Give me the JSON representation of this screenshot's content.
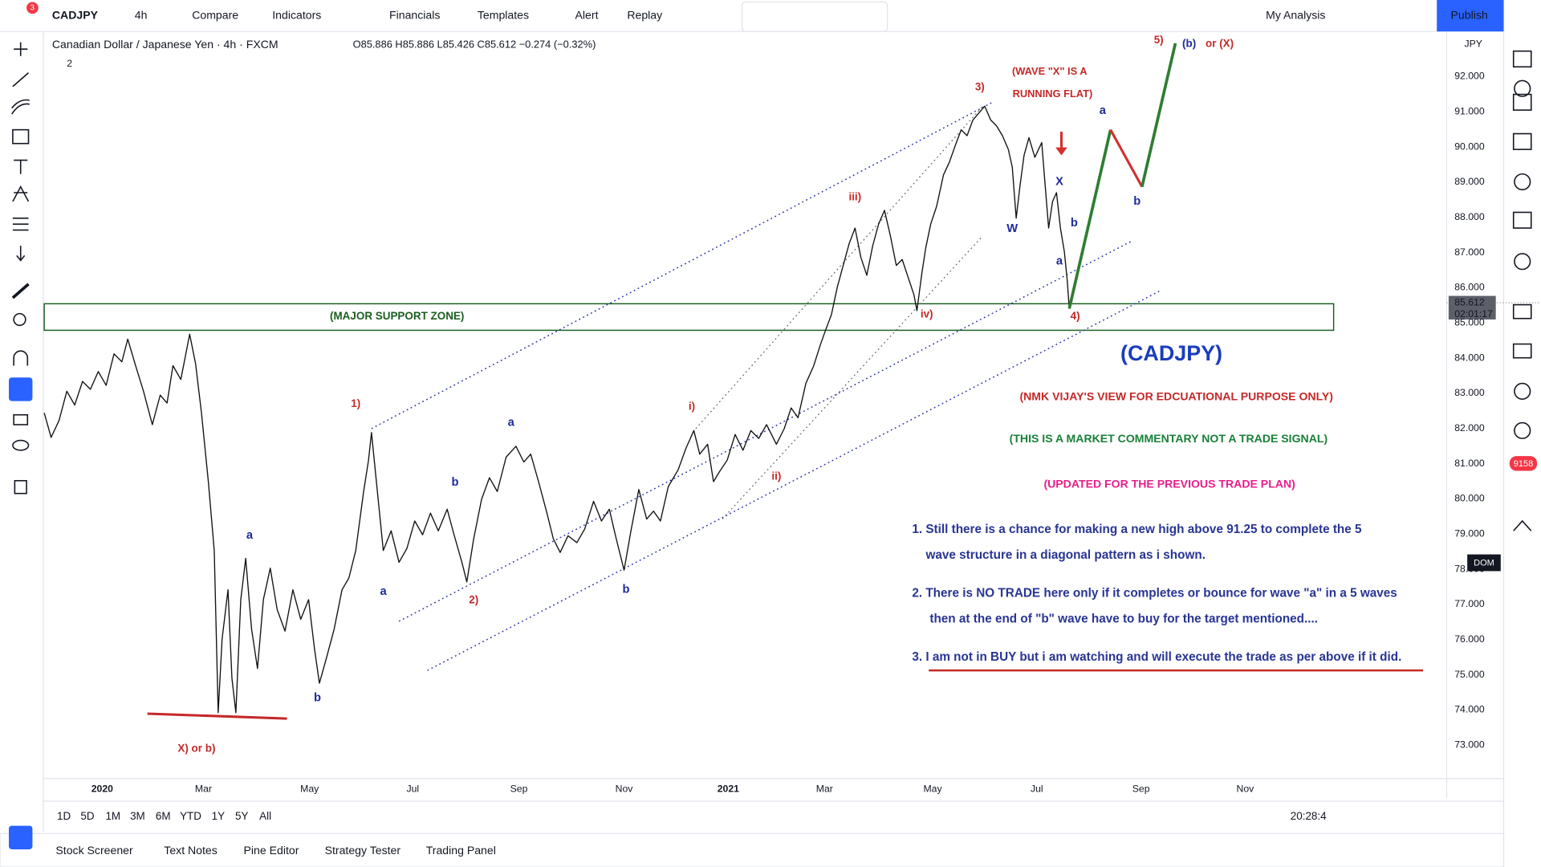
{
  "toolbar": {
    "symbol": "CADJPY",
    "interval": "4h",
    "items": [
      "Compare",
      "Indicators",
      "Financials",
      "Templates",
      "Alert",
      "Replay"
    ],
    "layout": "My Analysis",
    "publish": "Publish",
    "notifications": "3"
  },
  "legend": {
    "title": "Canadian Dollar / Japanese Yen · 4h · FXCM",
    "ohlc": "O85.886 H85.886 L85.426 C85.612 −0.274 (−0.32%)",
    "collapsed": "2"
  },
  "price_axis": {
    "currency": "JPY",
    "labels": [
      "92.000",
      "91.000",
      "90.000",
      "89.000",
      "88.000",
      "87.000",
      "86.000",
      "85.000",
      "84.000",
      "83.000",
      "82.000",
      "81.000",
      "80.000",
      "79.000",
      "78.000",
      "77.000",
      "76.000",
      "75.000",
      "74.000",
      "73.000"
    ],
    "last_price": "85.612",
    "countdown": "02:01:17"
  },
  "time_axis": {
    "labels": [
      "2020",
      "Mar",
      "May",
      "Jul",
      "Sep",
      "Nov",
      "2021",
      "Mar",
      "May",
      "Jul",
      "Sep",
      "Nov"
    ]
  },
  "annotations": [
    "(WAVE \"X\" IS A",
    "RUNNING FLAT)",
    "3)",
    "5)",
    "(b)",
    "or (X)",
    "a",
    "b",
    "X",
    "b",
    "W",
    "a",
    "4)",
    "iii)",
    "iv)",
    "(MAJOR SUPPORT ZONE)",
    "(CADJPY)",
    "(NMK VIJAY'S VIEW FOR EDCUATIONAL PURPOSE ONLY)",
    "(THIS IS A MARKET COMMENTARY NOT A TRADE SIGNAL)",
    "(UPDATED FOR THE PREVIOUS TRADE PLAN)",
    "1)",
    "i)",
    "a",
    "b",
    "a",
    "a",
    "2)",
    "ii)",
    "b",
    "b",
    "X) or b)"
  ],
  "notes": [
    "1. Still there is a chance for making a new high above 91.25 to complete the 5",
    "wave structure in a diagonal pattern as i shown.",
    "2. There is NO TRADE here only if it completes or bounce for wave \"a\" in a 5 waves",
    "then at the end of \"b\" wave have to buy for the target mentioned....",
    "3. I am not in BUY but i am watching and will execute the trade as per above if it did."
  ],
  "timeframes": [
    "1D",
    "5D",
    "1M",
    "3M",
    "6M",
    "YTD",
    "1Y",
    "5Y",
    "All"
  ],
  "clock": "20:28:4",
  "bottom_tabs": [
    "Stock Screener",
    "Text Notes",
    "Pine Editor",
    "Strategy Tester",
    "Trading Panel"
  ],
  "side_badges": {
    "alerts": "9158",
    "dom": "DOM"
  }
}
